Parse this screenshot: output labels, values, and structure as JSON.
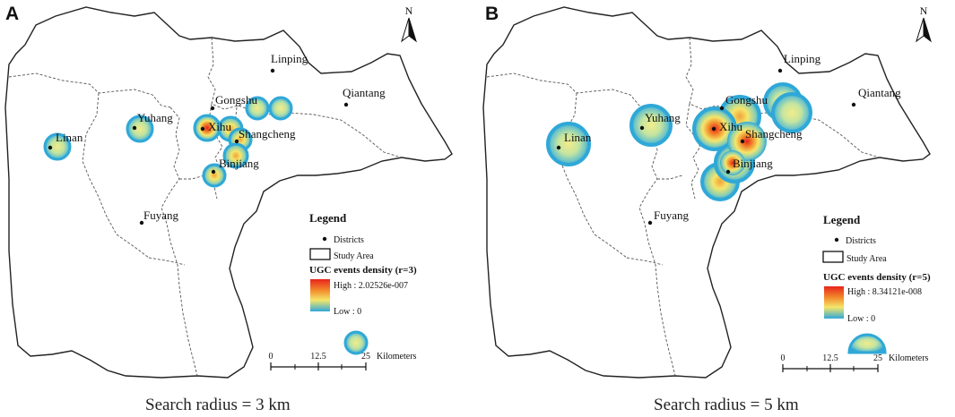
{
  "panels": [
    {
      "letter": "A",
      "caption": "Search radius = 3 km",
      "districts": [
        "Linping",
        "Qiantang",
        "Gongshu",
        "Yuhang",
        "Xihu",
        "Shangcheng",
        "Linan",
        "Binjiang",
        "Fuyang"
      ],
      "legend": {
        "title": "Legend",
        "districts_label": "Districts",
        "study_area_label": "Study Area",
        "density_title": "UGC events density (r=3)",
        "high_label": "High : 2.02526e-007",
        "low_label": "Low : 0"
      },
      "scale": {
        "ticks": [
          "0",
          "12.5",
          "25"
        ],
        "unit": "Kilometers"
      },
      "north": "N"
    },
    {
      "letter": "B",
      "caption": "Search radius = 5 km",
      "districts": [
        "Linping",
        "Qiantang",
        "Gongshu",
        "Yuhang",
        "Xihu",
        "Shangcheng",
        "Linan",
        "Binjiang",
        "Fuyang"
      ],
      "legend": {
        "title": "Legend",
        "districts_label": "Districts",
        "study_area_label": "Study Area",
        "density_title": "UGC events density (r=5)",
        "high_label": "High : 8.34121e-008",
        "low_label": "Low : 0"
      },
      "scale": {
        "ticks": [
          "0",
          "12.5",
          "25"
        ],
        "unit": "Kilometers"
      },
      "north": "N"
    }
  ],
  "colors": {
    "density_high": "#e8241c",
    "density_mid": "#f5e66a",
    "density_low": "#2fa8d8"
  }
}
